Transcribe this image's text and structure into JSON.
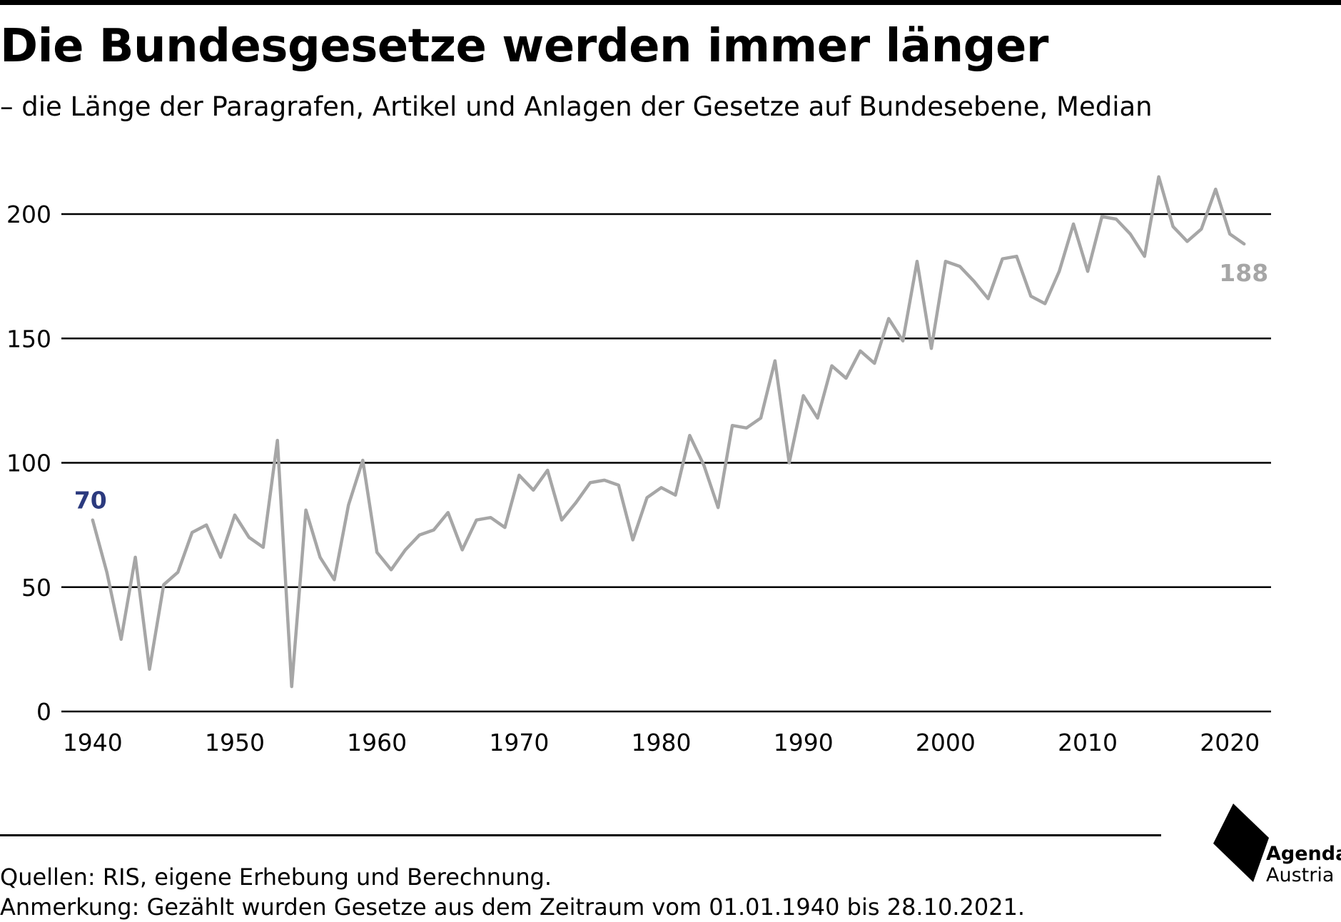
{
  "header": {
    "title": "Die Bundesgesetze werden immer länger",
    "subtitle": "– die Länge der Paragrafen, Artikel und Anlagen der Gesetze auf Bundesebene, Median"
  },
  "chart_data": {
    "type": "line",
    "title": "Die Bundesgesetze werden immer länger",
    "subtitle": "– die Länge der Paragrafen, Artikel und Anlagen der Gesetze auf Bundesebene, Median",
    "xlabel": "",
    "ylabel": "",
    "xlim": [
      1937.8,
      2022.9
    ],
    "ylim": [
      0,
      200
    ],
    "x_ticks": [
      "1940",
      "1950",
      "1960",
      "1970",
      "1980",
      "1990",
      "2000",
      "2010",
      "2020"
    ],
    "y_ticks": [
      "0",
      "50",
      "100",
      "150",
      "200"
    ],
    "grid": "horizontal",
    "legend": "none",
    "series": [
      {
        "color": "#a6a6a6",
        "x": [
          1940,
          1941,
          1942,
          1943,
          1944,
          1945,
          1946,
          1947,
          1948,
          1949,
          1950,
          1951,
          1952,
          1953,
          1954,
          1955,
          1956,
          1957,
          1958,
          1959,
          1960,
          1961,
          1962,
          1963,
          1964,
          1965,
          1966,
          1967,
          1968,
          1969,
          1970,
          1971,
          1972,
          1973,
          1974,
          1975,
          1976,
          1977,
          1978,
          1979,
          1980,
          1981,
          1982,
          1983,
          1984,
          1985,
          1986,
          1987,
          1988,
          1989,
          1990,
          1991,
          1992,
          1993,
          1994,
          1995,
          1996,
          1997,
          1998,
          1999,
          2000,
          2001,
          2002,
          2003,
          2004,
          2005,
          2006,
          2007,
          2008,
          2009,
          2010,
          2011,
          2012,
          2013,
          2014,
          2015,
          2016,
          2017,
          2018,
          2019,
          2020,
          2021
        ],
        "values": [
          77,
          56,
          29,
          62,
          17,
          51,
          56,
          72,
          75,
          62,
          79,
          70,
          66,
          109,
          10,
          81,
          62,
          53,
          83,
          101,
          64,
          57,
          65,
          71,
          73,
          80,
          65,
          77,
          78,
          74,
          95,
          89,
          97,
          77,
          84,
          92,
          93,
          91,
          69,
          86,
          90,
          87,
          111,
          99,
          82,
          115,
          114,
          118,
          141,
          100,
          127,
          118,
          139,
          134,
          145,
          140,
          158,
          149,
          181,
          146,
          181,
          179,
          173,
          166,
          182,
          183,
          167,
          164,
          177,
          196,
          177,
          199,
          198,
          192,
          183,
          215,
          195,
          189,
          194,
          210,
          192,
          188
        ]
      }
    ],
    "annotations": [
      {
        "text": "70",
        "x": 1940,
        "color": "#2b3a7e"
      },
      {
        "text": "188",
        "x": 2021,
        "color": "#a6a6a6"
      }
    ]
  },
  "footer": {
    "sources": "Quellen: RIS, eigene Erhebung und Berechnung.",
    "note": "Anmerkung: Gezählt wurden Gesetze aus dem Zeitraum vom 01.01.1940 bis 28.10.2021."
  },
  "logo": {
    "line1": "Agenda",
    "line2": "Austria"
  }
}
